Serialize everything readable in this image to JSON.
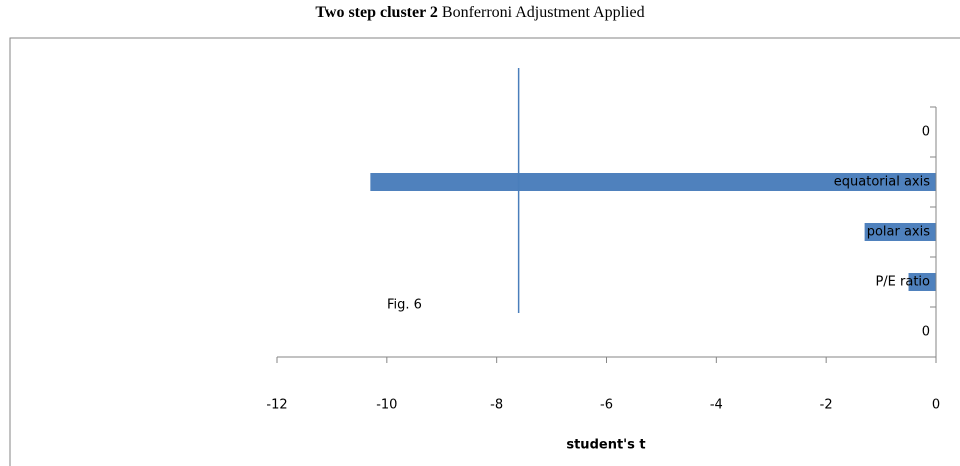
{
  "chart_data": {
    "type": "barh",
    "title": "Two step cluster 2",
    "subtitle": "Bonferroni Adjustment Applied",
    "categories": [
      "0",
      "equatorial axis",
      "polar axis",
      "P/E ratio",
      "0"
    ],
    "values": [
      0,
      -10.3,
      -1.3,
      -0.5,
      0
    ],
    "color": "#4f81bd",
    "xlim": [
      -12,
      0
    ],
    "xticks": [
      -12,
      -10,
      -8,
      -6,
      -4,
      -2,
      0
    ],
    "xlabel": "student's t",
    "reference_line": -7.6,
    "reference_color": "#4a7ebb",
    "annotation": "Fig. 6"
  }
}
